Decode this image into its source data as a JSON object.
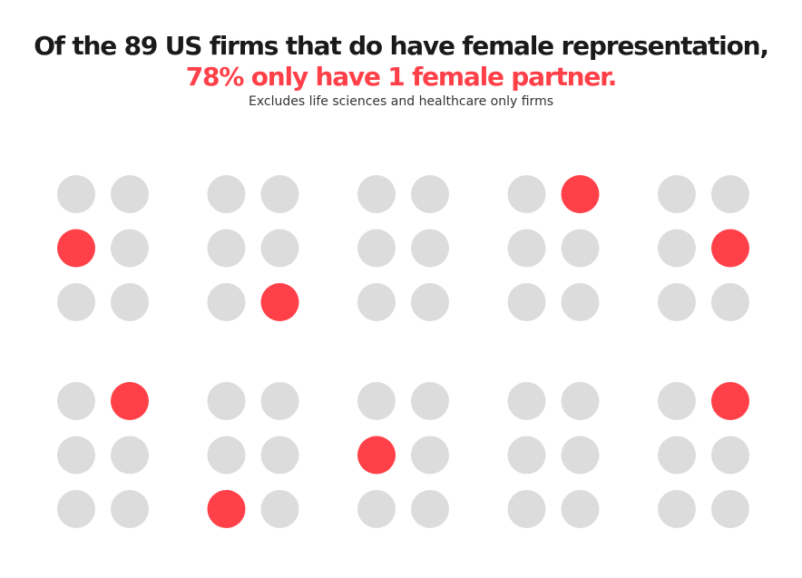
{
  "header": {
    "title_line1": "Of the 89 US firms that do have female representation,",
    "title_line2": "78% only have 1 female partner.",
    "subtitle": "Excludes life sciences and healthcare only firms"
  },
  "colors": {
    "highlight": "#ff4048",
    "neutral": "#dcdcdc",
    "title_dark": "#1a1a1a",
    "title_accent": "#ff4048"
  },
  "chart_data": {
    "type": "dot-matrix",
    "title": "Of the 89 US firms that do have female representation,",
    "subtitle": "78% only have 1 female partner.",
    "note": "Excludes life sciences and healthcare only firms",
    "layout": {
      "groups_per_row": 5,
      "group_rows": 2,
      "dot_rows": 3,
      "dot_cols": 2
    },
    "groups": [
      {
        "highlight": [
          1,
          0
        ]
      },
      {
        "highlight": [
          2,
          1
        ]
      },
      {
        "highlight": null
      },
      {
        "highlight": [
          0,
          1
        ]
      },
      {
        "highlight": [
          1,
          1
        ]
      },
      {
        "highlight": [
          0,
          1
        ]
      },
      {
        "highlight": [
          2,
          0
        ]
      },
      {
        "highlight": [
          1,
          0
        ]
      },
      {
        "highlight": null
      },
      {
        "highlight": [
          0,
          1
        ]
      }
    ]
  }
}
